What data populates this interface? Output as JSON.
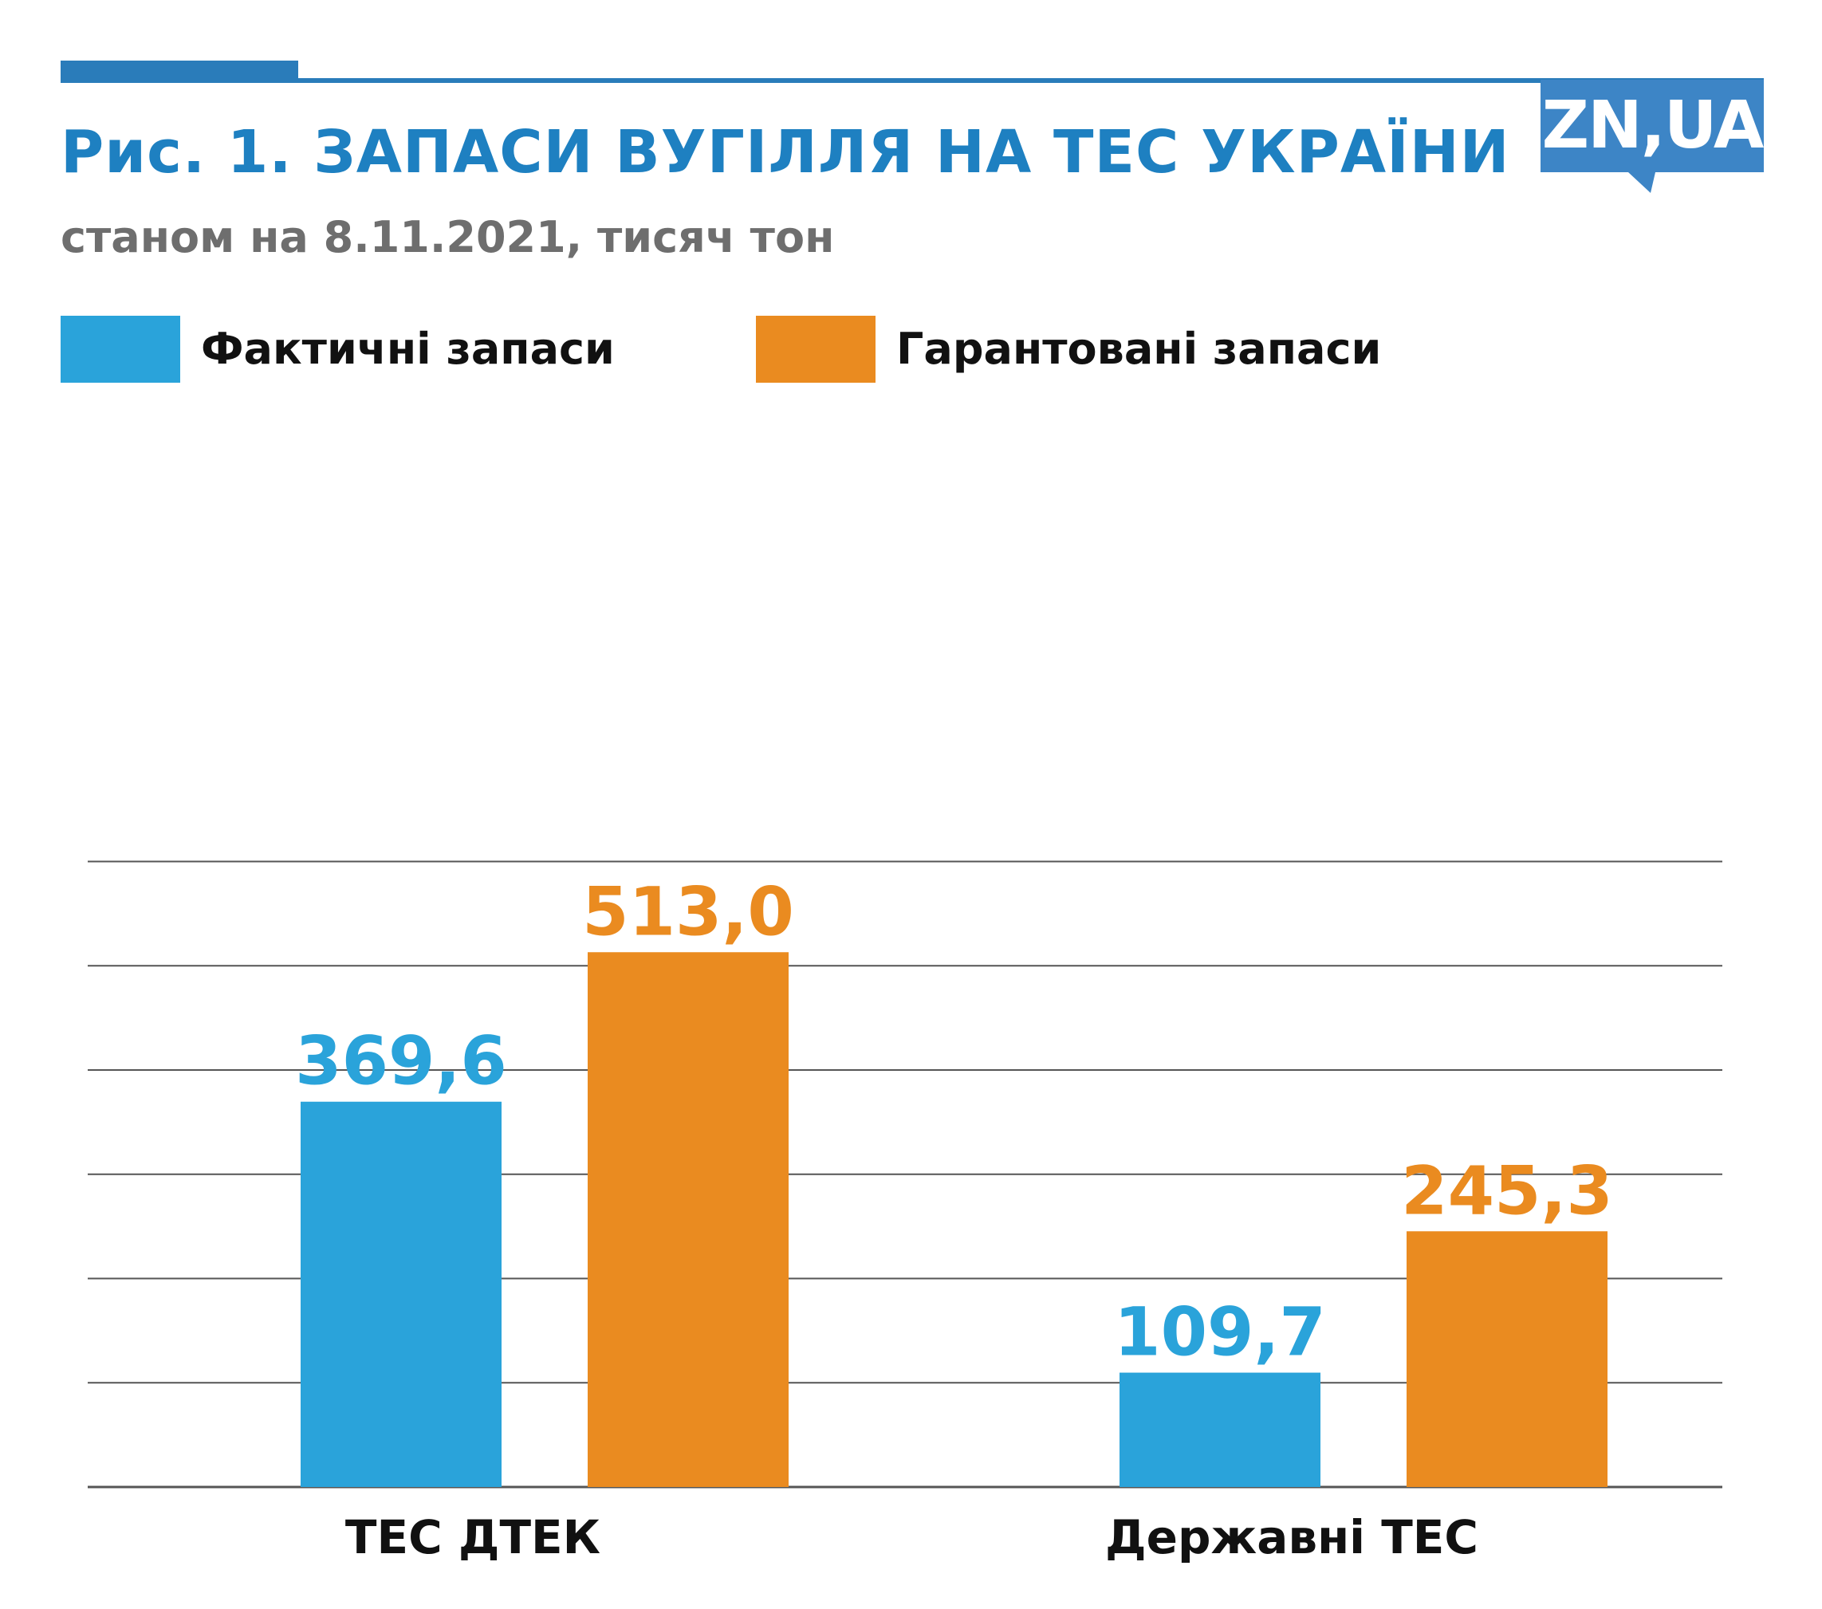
{
  "header": {
    "title": "Рис. 1. ЗАПАСИ ВУГІЛЛЯ НА ТЕС УКРАЇНИ",
    "subtitle": "станом на 8.11.2021, тисяч тон",
    "logo_text": "ZN,UA"
  },
  "colors": {
    "accent": "#1e80c1",
    "rule": "#2a7cba",
    "logo_bg": "#3d85c6",
    "series_actual": "#2aa3da",
    "series_guaranteed": "#ea8b20",
    "grid": "#555555"
  },
  "legend": {
    "items": [
      {
        "label": "Фактичні запаси",
        "color": "#2aa3da"
      },
      {
        "label": "Гарантовані запаси",
        "color": "#ea8b20"
      }
    ]
  },
  "chart_data": {
    "type": "bar",
    "title": "Рис. 1. ЗАПАСИ ВУГІЛЛЯ НА ТЕС УКРАЇНИ",
    "subtitle": "станом на 8.11.2021, тисяч тон",
    "categories": [
      "ТЕС ДТЕК",
      "Державні ТЕС"
    ],
    "series": [
      {
        "name": "Фактичні запаси",
        "color": "#2aa3da",
        "values": [
          369.6,
          109.7
        ],
        "labels": [
          "369,6",
          "109,7"
        ]
      },
      {
        "name": "Гарантовані запаси",
        "color": "#ea8b20",
        "values": [
          513.0,
          245.3
        ],
        "labels": [
          "513,0",
          "245,3"
        ]
      }
    ],
    "ylim": [
      0,
      600
    ],
    "grid_step": 100,
    "grid": true,
    "legend_position": "top-left",
    "xlabel": "",
    "ylabel": ""
  }
}
